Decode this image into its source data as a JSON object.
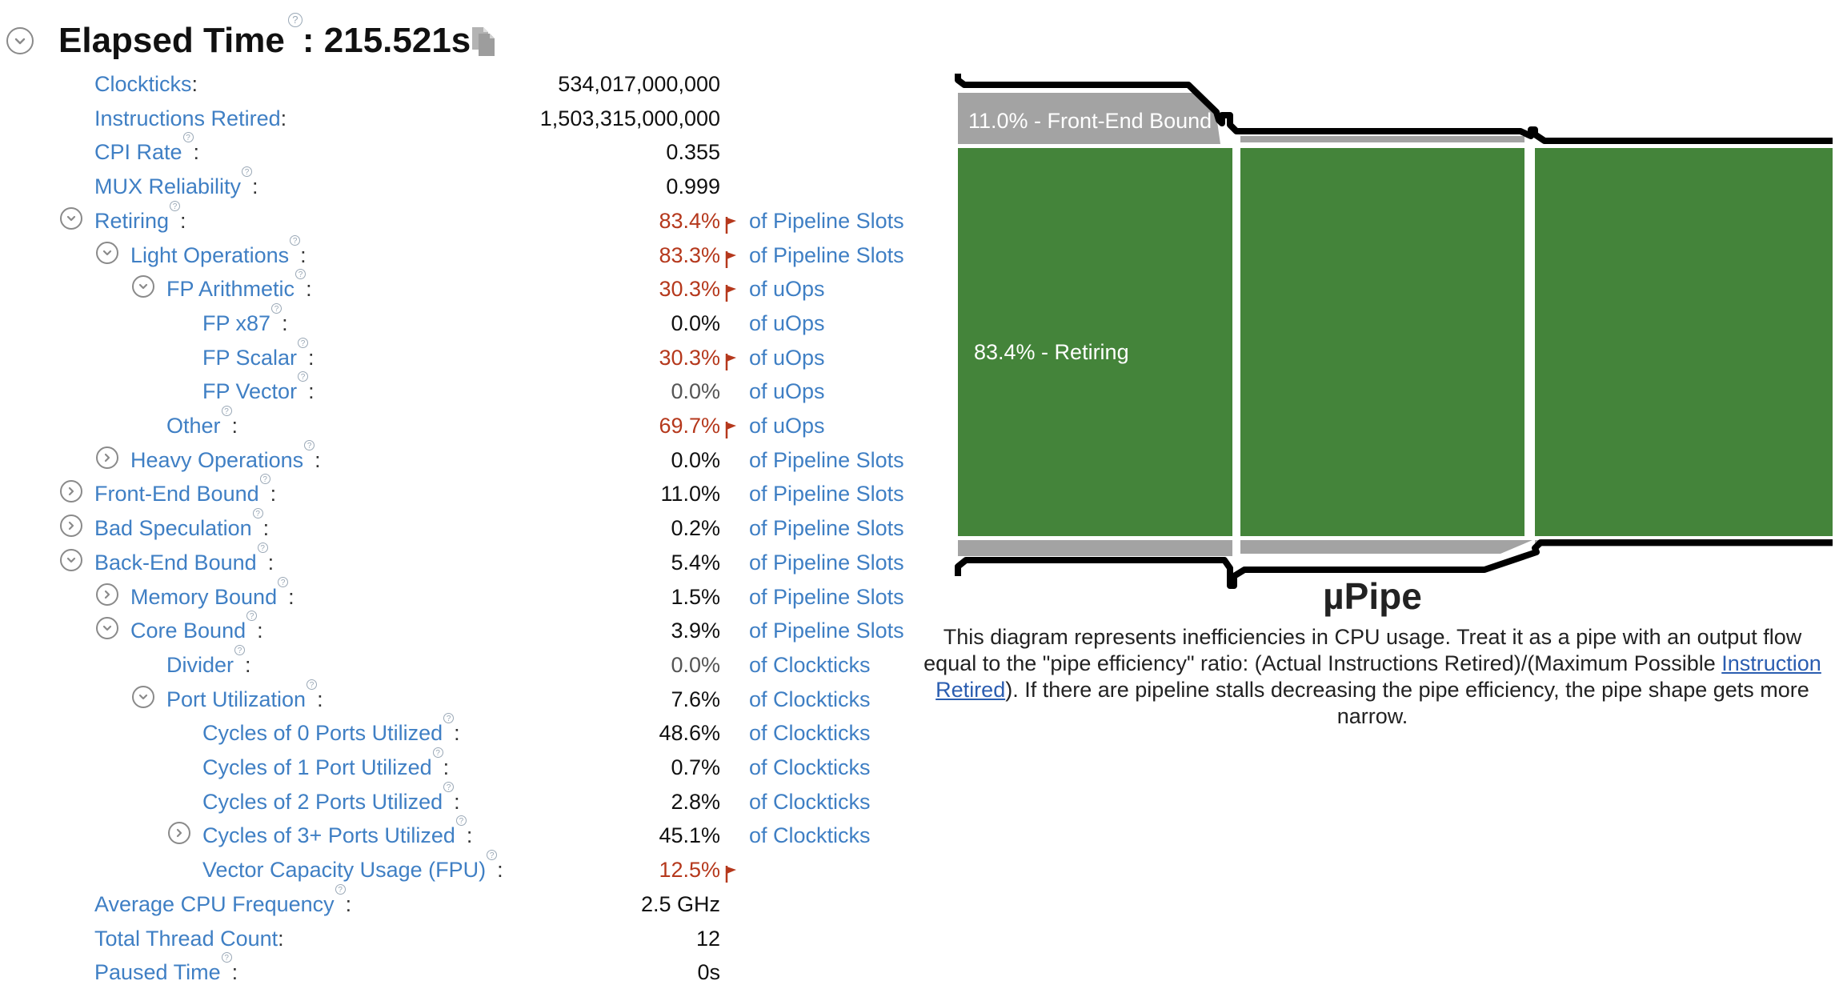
{
  "header": {
    "title_label": "Elapsed Time",
    "title_suffix": ": 215.521s"
  },
  "metrics": [
    {
      "label": "Clockticks",
      "value": "534,017,000,000",
      "unit": "",
      "indent": 0,
      "toggle": "none",
      "help": false,
      "style": "normal",
      "flag": false
    },
    {
      "label": "Instructions Retired",
      "value": "1,503,315,000,000",
      "unit": "",
      "indent": 0,
      "toggle": "none",
      "help": false,
      "style": "normal",
      "flag": false
    },
    {
      "label": "CPI Rate",
      "value": "0.355",
      "unit": "",
      "indent": 0,
      "toggle": "none",
      "help": true,
      "style": "normal",
      "flag": false
    },
    {
      "label": "MUX Reliability",
      "value": "0.999",
      "unit": "",
      "indent": 0,
      "toggle": "none",
      "help": true,
      "style": "normal",
      "flag": false
    },
    {
      "label": "Retiring",
      "value": "83.4%",
      "unit": "of Pipeline Slots",
      "indent": 0,
      "toggle": "expanded",
      "help": true,
      "style": "red",
      "flag": true
    },
    {
      "label": "Light Operations",
      "value": "83.3%",
      "unit": "of Pipeline Slots",
      "indent": 1,
      "toggle": "expanded",
      "help": true,
      "style": "red",
      "flag": true
    },
    {
      "label": "FP Arithmetic",
      "value": "30.3%",
      "unit": "of uOps",
      "indent": 2,
      "toggle": "expanded",
      "help": true,
      "style": "red",
      "flag": true
    },
    {
      "label": "FP x87",
      "value": "0.0%",
      "unit": "of uOps",
      "indent": 3,
      "toggle": "none",
      "help": true,
      "style": "normal",
      "flag": false
    },
    {
      "label": "FP Scalar",
      "value": "30.3%",
      "unit": "of uOps",
      "indent": 3,
      "toggle": "none",
      "help": true,
      "style": "red",
      "flag": true
    },
    {
      "label": "FP Vector",
      "value": "0.0%",
      "unit": "of uOps",
      "indent": 3,
      "toggle": "none",
      "help": true,
      "style": "gray",
      "flag": false
    },
    {
      "label": "Other",
      "value": "69.7%",
      "unit": "of uOps",
      "indent": 2,
      "toggle": "none",
      "help": true,
      "style": "red",
      "flag": true
    },
    {
      "label": "Heavy Operations",
      "value": "0.0%",
      "unit": "of Pipeline Slots",
      "indent": 1,
      "toggle": "collapsed",
      "help": true,
      "style": "normal",
      "flag": false
    },
    {
      "label": "Front-End Bound",
      "value": "11.0%",
      "unit": "of Pipeline Slots",
      "indent": 0,
      "toggle": "collapsed",
      "help": true,
      "style": "normal",
      "flag": false
    },
    {
      "label": "Bad Speculation",
      "value": "0.2%",
      "unit": "of Pipeline Slots",
      "indent": 0,
      "toggle": "collapsed",
      "help": true,
      "style": "normal",
      "flag": false
    },
    {
      "label": "Back-End Bound",
      "value": "5.4%",
      "unit": "of Pipeline Slots",
      "indent": 0,
      "toggle": "expanded",
      "help": true,
      "style": "normal",
      "flag": false
    },
    {
      "label": "Memory Bound",
      "value": "1.5%",
      "unit": "of Pipeline Slots",
      "indent": 1,
      "toggle": "collapsed",
      "help": true,
      "style": "normal",
      "flag": false
    },
    {
      "label": "Core Bound",
      "value": "3.9%",
      "unit": "of Pipeline Slots",
      "indent": 1,
      "toggle": "expanded",
      "help": true,
      "style": "normal",
      "flag": false
    },
    {
      "label": "Divider",
      "value": "0.0%",
      "unit": "of Clockticks",
      "indent": 2,
      "toggle": "none",
      "help": true,
      "style": "gray",
      "flag": false
    },
    {
      "label": "Port Utilization",
      "value": "7.6%",
      "unit": "of Clockticks",
      "indent": 2,
      "toggle": "expanded",
      "help": true,
      "style": "normal",
      "flag": false
    },
    {
      "label": "Cycles of 0 Ports Utilized",
      "value": "48.6%",
      "unit": "of Clockticks",
      "indent": 3,
      "toggle": "none",
      "help": true,
      "style": "normal",
      "flag": false
    },
    {
      "label": "Cycles of 1 Port Utilized",
      "value": "0.7%",
      "unit": "of Clockticks",
      "indent": 3,
      "toggle": "none",
      "help": true,
      "style": "normal",
      "flag": false
    },
    {
      "label": "Cycles of 2 Ports Utilized",
      "value": "2.8%",
      "unit": "of Clockticks",
      "indent": 3,
      "toggle": "none",
      "help": true,
      "style": "normal",
      "flag": false
    },
    {
      "label": "Cycles of 3+ Ports Utilized",
      "value": "45.1%",
      "unit": "of Clockticks",
      "indent": 3,
      "toggle": "collapsed",
      "help": true,
      "style": "normal",
      "flag": false
    },
    {
      "label": "Vector Capacity Usage (FPU)",
      "value": "12.5%",
      "unit": "",
      "indent": 3,
      "toggle": "none",
      "help": true,
      "style": "red",
      "flag": true
    },
    {
      "label": "Average CPU Frequency",
      "value": "2.5 GHz",
      "unit": "",
      "indent": 0,
      "toggle": "none",
      "help": true,
      "style": "normal",
      "flag": false
    },
    {
      "label": "Total Thread Count",
      "value": "12",
      "unit": "",
      "indent": 0,
      "toggle": "none",
      "help": false,
      "style": "normal",
      "flag": false
    },
    {
      "label": "Paused Time",
      "value": "0s",
      "unit": "",
      "indent": 0,
      "toggle": "none",
      "help": true,
      "style": "normal",
      "flag": false
    }
  ],
  "upipe": {
    "title": "µPipe",
    "front_end_label": "11.0% - Front-End Bound",
    "retiring_label": "83.4% - Retiring",
    "desc_before": "This diagram represents inefficiencies in CPU usage. Treat it as a pipe with an output flow equal to the \"pipe efficiency\" ratio: (Actual Instructions Retired)/(Maximum Possible ",
    "desc_link": "Instruction Retired",
    "desc_after": "). If there are pipeline stalls decreasing the pipe efficiency, the pipe shape gets more narrow.",
    "colors": {
      "retiring": "#44843a",
      "bound": "#a3a3a3",
      "outline": "#000000"
    }
  },
  "colors": {
    "link": "#3f7fc4",
    "flag": "#b5381c",
    "value_red": "#b5381c"
  }
}
